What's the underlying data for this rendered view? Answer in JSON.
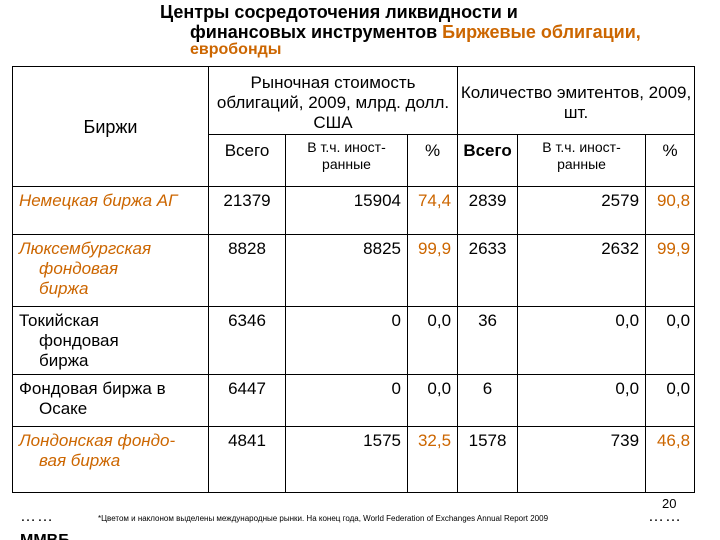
{
  "title": {
    "line1": "Центры сосредоточения ликвидности и",
    "line2_part1": "финансовых инструментов ",
    "line2_part2": "Биржевые облигации,",
    "line3": "евробонды"
  },
  "table": {
    "col_exchanges": "Биржи",
    "group_market_value": "Рыночная стоимость облигаций, 2009, млрд. долл. США",
    "group_issuers": "Количество эмитентов, 2009, шт.",
    "sub_total": "Всего",
    "sub_foreign": "В т.ч. иност-ранные",
    "sub_pct": "%",
    "rows": [
      {
        "name": "Немецкая биржа АГ",
        "name2": "",
        "name3": "",
        "italic": true,
        "mv_total": "21379",
        "mv_foreign": "15904",
        "mv_pct": "74,4",
        "mv_pct_hl": true,
        "iss_total": "2839",
        "iss_foreign": "2579",
        "iss_pct": "90,8",
        "iss_pct_hl": true
      },
      {
        "name": "Люксембургская",
        "name2": "фондовая",
        "name3": "биржа",
        "italic": true,
        "mv_total": "8828",
        "mv_foreign": "8825",
        "mv_pct": "99,9",
        "mv_pct_hl": true,
        "iss_total": "2633",
        "iss_foreign": "2632",
        "iss_pct": "99,9",
        "iss_pct_hl": true
      },
      {
        "name": "Токийская",
        "name2": "фондовая",
        "name3": "биржа",
        "italic": false,
        "mv_total": "6346",
        "mv_foreign": "0",
        "mv_pct": "0,0",
        "mv_pct_hl": false,
        "iss_total": "36",
        "iss_foreign": "0,0",
        "iss_pct": "0,0",
        "iss_pct_hl": false
      },
      {
        "name": "Фондовая биржа в",
        "name2": "Осаке",
        "name3": "",
        "italic": false,
        "mv_total": "6447",
        "mv_foreign": "0",
        "mv_pct": "0,0",
        "mv_pct_hl": false,
        "iss_total": "6",
        "iss_foreign": "0,0",
        "iss_pct": "0,0",
        "iss_pct_hl": false
      },
      {
        "name": "Лондонская фондо-",
        "name2": "вая биржа",
        "name3": "",
        "italic": true,
        "mv_total": "4841",
        "mv_foreign": "1575",
        "mv_pct": "32,5",
        "mv_pct_hl": true,
        "iss_total": "1578",
        "iss_foreign": "739",
        "iss_pct": "46,8",
        "iss_pct_hl": true
      }
    ]
  },
  "ellipsis": "……",
  "footnote": {
    "text": "*Цветом и наклоном выделены международные рынки. На конец года, World Federation of Exchanges Annual Report 2009"
  },
  "page_number": "20",
  "cut_row_text": "ММВБ"
}
